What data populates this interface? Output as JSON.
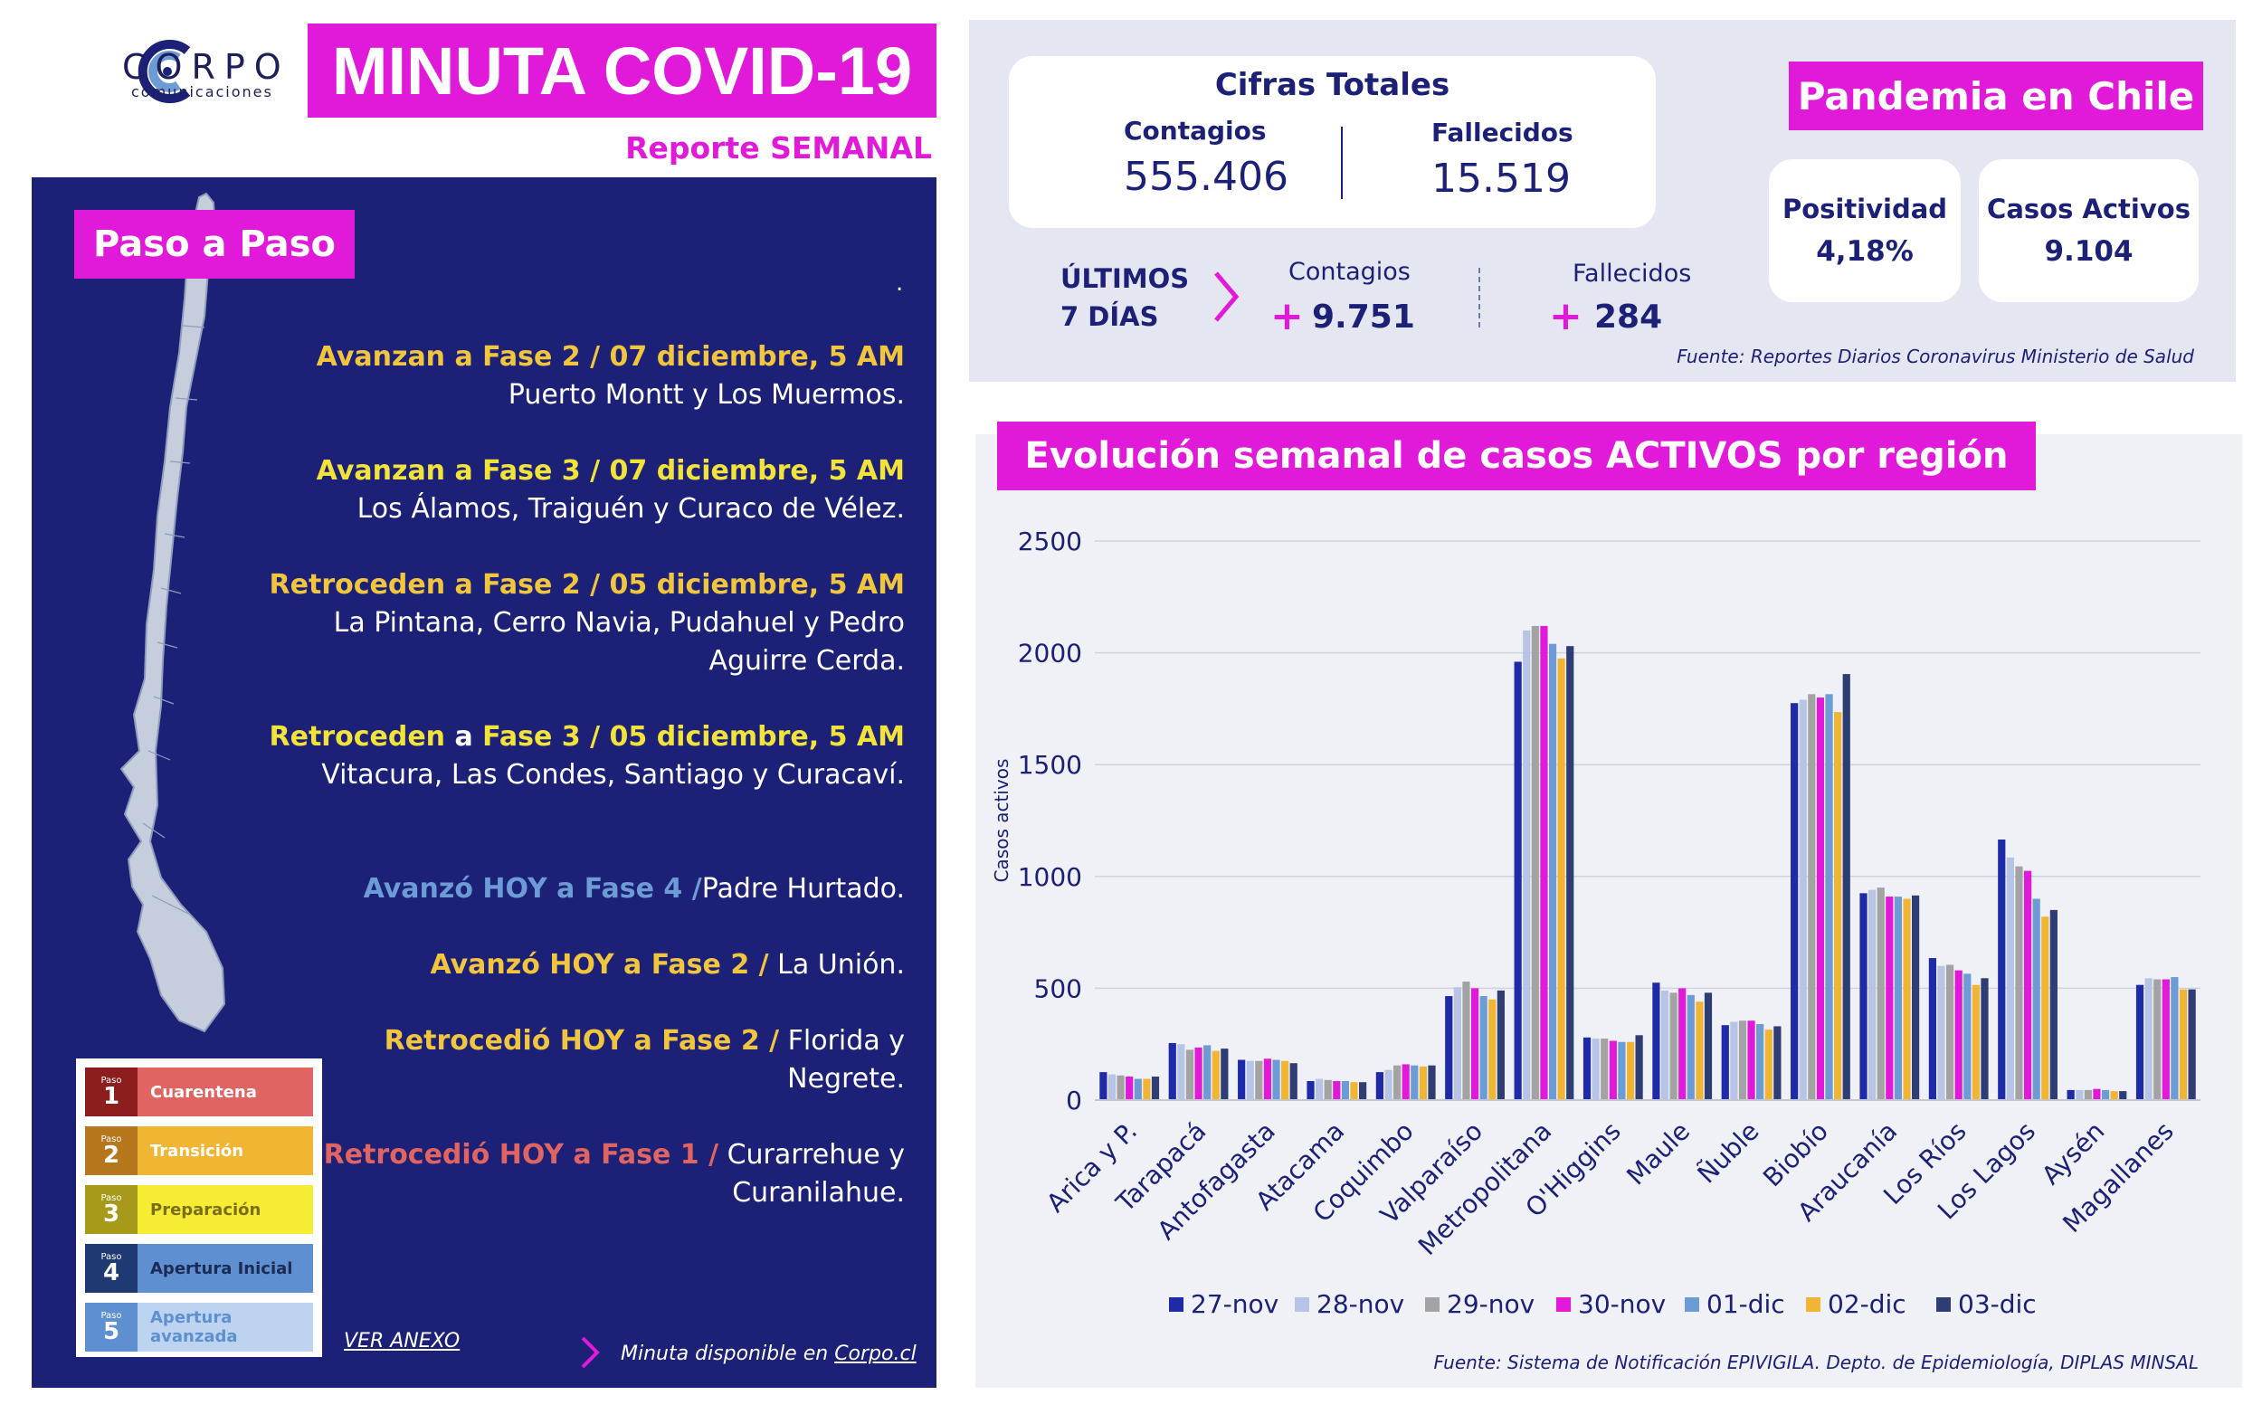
{
  "header": {
    "logo_name": "CORPO",
    "logo_sub": "comunicaciones",
    "title": "MINUTA COVID-19",
    "subtitle": "Reporte SEMANAL"
  },
  "paso_a_paso": {
    "badge": "Paso a Paso",
    "dot": ".",
    "updates": [
      {
        "highlight": "Avanzan a Fase 2 / 07 diciembre, 5 AM",
        "highlight_color": "#f1c63e",
        "body": "Puerto Montt y Los Muermos."
      },
      {
        "highlight": "Avanzan a Fase 3 / 07 diciembre, 5 AM",
        "highlight_color": "#f2e33b",
        "body": "Los Álamos, Traiguén y Curaco de Vélez."
      },
      {
        "highlight": "Retroceden a Fase 2 / 05 diciembre, 5 AM",
        "highlight_color": "#f1c63e",
        "body": "La Pintana, Cerro Navia, Pudahuel y Pedro",
        "body2": "Aguirre Cerda."
      },
      {
        "highlight_a": "Retroceden",
        "highlight_b": " a ",
        "highlight_c": "Fase 3 / 05 diciembre, 5 AM",
        "highlight_color": "#f2e33b",
        "body": "Vitacura, Las Condes, Santiago y Curacaví."
      },
      {
        "highlight": "Avanzó HOY a Fase 4 /",
        "highlight_color": "#6c9bd6",
        "body": "Padre Hurtado."
      },
      {
        "highlight": "Avanzó HOY a Fase 2 /",
        "highlight_color": "#f1c63e",
        "body": "La Unión."
      },
      {
        "highlight": "Retrocedió HOY a Fase 2 /",
        "highlight_color": "#f1c63e",
        "body": "Florida y",
        "body2": "Negrete."
      },
      {
        "highlight": "Retrocedió HOY a Fase 1 /",
        "highlight_color": "#e06461",
        "body": "Curarrehue y",
        "body2": "Curanilahue."
      }
    ],
    "legend": [
      {
        "paso": "Paso",
        "num": "1",
        "label": "Cuarentena",
        "num_color": "#8c1e1e",
        "color": "#e06461",
        "text_color": "#ffffff"
      },
      {
        "paso": "Paso",
        "num": "2",
        "label": "Transición",
        "num_color": "#b5761c",
        "color": "#f1b534",
        "text_color": "#ffffff"
      },
      {
        "paso": "Paso",
        "num": "3",
        "label": "Preparación",
        "num_color": "#a79a1a",
        "color": "#f7ec34",
        "text_color": "#7a6e1a"
      },
      {
        "paso": "Paso",
        "num": "4",
        "label": "Apertura Inicial",
        "num_color": "#1f3a72",
        "color": "#5e8fd1",
        "text_color": "#1c2a56"
      },
      {
        "paso": "Paso",
        "num": "5",
        "label": "Apertura avanzada",
        "num_color": "#5e8fd1",
        "color": "#bcd4ef",
        "text_color": "#5e8fd1"
      }
    ],
    "ver_anexo": "VER ANEXO",
    "minuta_prefix": "Minuta disponible en ",
    "minuta_link": "Corpo.cl"
  },
  "cifras": {
    "title": "Cifras Totales",
    "contagios_label": "Contagios",
    "contagios_value": "555.406",
    "fallecidos_label": "Fallecidos",
    "fallecidos_value": "15.519",
    "ultimos_1": "ÚLTIMOS",
    "ultimos_2": "7 DÍAS",
    "wk_contagios_label": "Contagios",
    "wk_contagios_value": "9.751",
    "wk_fallecidos_label": "Fallecidos",
    "wk_fallecidos_value": "284",
    "plus": "+",
    "fuente": "Fuente: Reportes Diarios Coronavirus Ministerio de Salud"
  },
  "pandemia": {
    "badge": "Pandemia en Chile",
    "positividad_label": "Positividad",
    "positividad_value": "4,18%",
    "activos_label": "Casos Activos",
    "activos_value": "9.104"
  },
  "chart_title": "Evolución semanal de casos ACTIVOS por región",
  "chart_fuente": "Fuente: Sistema de Notificación EPIVIGILA. Depto. de Epidemiología, DIPLAS MINSAL",
  "chart_data": {
    "type": "bar",
    "ylabel": "Casos activos",
    "ylim": [
      0,
      2500
    ],
    "yticks": [
      0,
      500,
      1000,
      1500,
      2000,
      2500
    ],
    "grid": true,
    "legend_position": "bottom",
    "categories": [
      "Arica y P.",
      "Tarapacá",
      "Antofagasta",
      "Atacama",
      "Coquimbo",
      "Valparaíso",
      "Metropolitana",
      "O'Higgins",
      "Maule",
      "Ñuble",
      "Biobío",
      "Araucanía",
      "Los Ríos",
      "Los Lagos",
      "Aysén",
      "Magallanes"
    ],
    "series": [
      {
        "name": "27-nov",
        "color": "#1f2aa8",
        "values": [
          125,
          255,
          180,
          85,
          125,
          465,
          1960,
          280,
          525,
          335,
          1775,
          925,
          635,
          1165,
          45,
          515
        ]
      },
      {
        "name": "28-nov",
        "color": "#b8c4e6",
        "values": [
          115,
          250,
          175,
          95,
          135,
          505,
          2100,
          275,
          490,
          350,
          1790,
          940,
          600,
          1085,
          45,
          545
        ]
      },
      {
        "name": "29-nov",
        "color": "#a3a3a3",
        "values": [
          110,
          225,
          175,
          90,
          155,
          530,
          2120,
          275,
          480,
          355,
          1815,
          950,
          605,
          1045,
          45,
          540
        ]
      },
      {
        "name": "30-nov",
        "color": "#e01ad8",
        "values": [
          105,
          235,
          185,
          85,
          160,
          500,
          2120,
          265,
          500,
          355,
          1800,
          910,
          580,
          1025,
          50,
          540
        ]
      },
      {
        "name": "01-dic",
        "color": "#6c9bd6",
        "values": [
          95,
          245,
          180,
          85,
          155,
          465,
          2040,
          260,
          470,
          340,
          1815,
          910,
          565,
          900,
          45,
          550
        ]
      },
      {
        "name": "02-dic",
        "color": "#f1b534",
        "values": [
          95,
          220,
          175,
          80,
          150,
          450,
          1975,
          260,
          440,
          315,
          1735,
          900,
          515,
          820,
          40,
          495
        ]
      },
      {
        "name": "03-dic",
        "color": "#2f3d75",
        "values": [
          105,
          230,
          165,
          80,
          155,
          490,
          2030,
          290,
          480,
          330,
          1905,
          915,
          545,
          850,
          40,
          495
        ]
      }
    ]
  }
}
